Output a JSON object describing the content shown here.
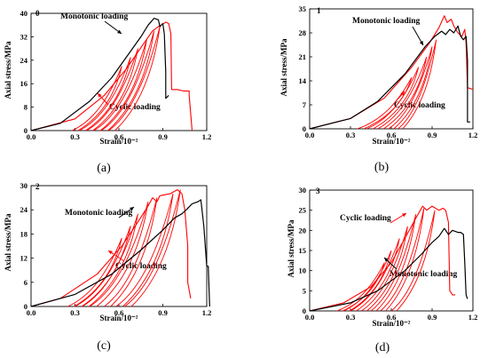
{
  "colors": {
    "monotonic": "#000000",
    "cyclic": "#ff0000",
    "axis": "#000000"
  },
  "chart_data": [
    {
      "type": "line",
      "panel_id": "0",
      "caption": "(a)",
      "xlabel": "Strain/10⁻²",
      "ylabel": "Axial stress/MPa",
      "xlim": [
        0.0,
        1.2
      ],
      "ylim": [
        0,
        40
      ],
      "xticks": [
        0.0,
        0.3,
        0.6,
        0.9,
        1.2
      ],
      "yticks": [
        0,
        8,
        16,
        24,
        32,
        40
      ],
      "xtick_labels": [
        "0.0",
        "0.3",
        "0.6",
        "0.9",
        "1.2"
      ],
      "ytick_labels": [
        "0",
        "8",
        "16",
        "24",
        "32",
        "40"
      ],
      "annotations": [
        {
          "text": "Monotonic loading",
          "series": "monotonic"
        },
        {
          "text": "Cyclic loading",
          "series": "cyclic"
        }
      ],
      "monotonic": [
        [
          0,
          0
        ],
        [
          0.2,
          2.5
        ],
        [
          0.4,
          10
        ],
        [
          0.55,
          18
        ],
        [
          0.65,
          25
        ],
        [
          0.75,
          32
        ],
        [
          0.8,
          36
        ],
        [
          0.84,
          38.3
        ],
        [
          0.87,
          37.8
        ],
        [
          0.88,
          35.5
        ],
        [
          0.9,
          36.5
        ],
        [
          0.91,
          33
        ],
        [
          0.92,
          20
        ],
        [
          0.92,
          11
        ],
        [
          0.93,
          11.5
        ],
        [
          0.94,
          12
        ]
      ],
      "cyclic_envelope": [
        [
          0,
          0
        ],
        [
          0.3,
          4
        ],
        [
          0.5,
          12
        ],
        [
          0.65,
          21
        ],
        [
          0.76,
          29
        ],
        [
          0.83,
          34
        ],
        [
          0.87,
          35.5
        ],
        [
          0.89,
          36
        ],
        [
          0.92,
          37
        ],
        [
          0.94,
          36.5
        ],
        [
          0.955,
          33
        ],
        [
          0.96,
          14
        ],
        [
          1.0,
          14
        ],
        [
          1.04,
          13.5
        ],
        [
          1.08,
          13.5
        ],
        [
          1.08,
          12
        ],
        [
          1.1,
          0
        ]
      ],
      "cyclic_loops": [
        {
          "start": 0.28,
          "peak": [
            0.62,
            22
          ]
        },
        {
          "start": 0.33,
          "peak": [
            0.68,
            25
          ]
        },
        {
          "start": 0.38,
          "peak": [
            0.73,
            28
          ]
        },
        {
          "start": 0.43,
          "peak": [
            0.79,
            31
          ]
        },
        {
          "start": 0.48,
          "peak": [
            0.84,
            34
          ]
        },
        {
          "start": 0.53,
          "peak": [
            0.88,
            35.5
          ]
        }
      ]
    },
    {
      "type": "line",
      "panel_id": "1",
      "caption": "(b)",
      "xlabel": "Strain/10⁻²",
      "ylabel": "Axial stress/MPa",
      "xlim": [
        0.0,
        1.2
      ],
      "ylim": [
        0,
        35
      ],
      "xticks": [
        0.0,
        0.3,
        0.6,
        0.9,
        1.2
      ],
      "yticks": [
        0,
        7,
        14,
        21,
        28,
        35
      ],
      "xtick_labels": [
        "0.0",
        "0.3",
        "0.6",
        "0.9",
        "1.2"
      ],
      "ytick_labels": [
        "0",
        "7",
        "14",
        "21",
        "28",
        "35"
      ],
      "annotations": [
        {
          "text": "Monotonic loading",
          "series": "monotonic"
        },
        {
          "text": "Cyclic loading",
          "series": "cyclic"
        }
      ],
      "monotonic": [
        [
          0,
          0
        ],
        [
          0.3,
          3
        ],
        [
          0.5,
          8
        ],
        [
          0.7,
          16
        ],
        [
          0.85,
          24
        ],
        [
          0.92,
          27
        ],
        [
          0.97,
          28.5
        ],
        [
          1.0,
          27.5
        ],
        [
          1.03,
          29
        ],
        [
          1.06,
          28
        ],
        [
          1.09,
          30
        ],
        [
          1.11,
          27
        ],
        [
          1.13,
          26
        ],
        [
          1.15,
          27
        ],
        [
          1.16,
          20
        ],
        [
          1.16,
          2
        ],
        [
          1.18,
          2
        ]
      ],
      "cyclic_envelope": [
        [
          0,
          0
        ],
        [
          0.3,
          3
        ],
        [
          0.55,
          9
        ],
        [
          0.75,
          18
        ],
        [
          0.88,
          25
        ],
        [
          0.95,
          29.5
        ],
        [
          0.99,
          33
        ],
        [
          1.01,
          31
        ],
        [
          1.04,
          32
        ],
        [
          1.06,
          30
        ],
        [
          1.09,
          28
        ],
        [
          1.12,
          27
        ],
        [
          1.14,
          29
        ],
        [
          1.15,
          25
        ],
        [
          1.16,
          12
        ],
        [
          1.2,
          11.5
        ]
      ],
      "cyclic_loops": [
        {
          "start": 0.35,
          "peak": [
            0.75,
            15
          ]
        },
        {
          "start": 0.42,
          "peak": [
            0.8,
            18
          ]
        },
        {
          "start": 0.5,
          "peak": [
            0.86,
            21
          ]
        },
        {
          "start": 0.58,
          "peak": [
            0.9,
            24
          ]
        },
        {
          "start": 0.65,
          "peak": [
            0.93,
            26
          ]
        }
      ]
    },
    {
      "type": "line",
      "panel_id": "2",
      "caption": "(c)",
      "xlabel": "Strain/10⁻²",
      "ylabel": "Axial stress/MPa",
      "xlim": [
        0.0,
        1.2
      ],
      "ylim": [
        0,
        30
      ],
      "xticks": [
        0.0,
        0.3,
        0.6,
        0.9,
        1.2
      ],
      "yticks": [
        0,
        6,
        12,
        18,
        24,
        30
      ],
      "xtick_labels": [
        "0.0",
        "0.3",
        "0.6",
        "0.9",
        "1.2"
      ],
      "ytick_labels": [
        "0",
        "6",
        "12",
        "18",
        "24",
        "30"
      ],
      "annotations": [
        {
          "text": "Monotonic loading",
          "series": "monotonic"
        },
        {
          "text": "Cyclic loading",
          "series": "cyclic"
        }
      ],
      "monotonic": [
        [
          0,
          0
        ],
        [
          0.3,
          3
        ],
        [
          0.55,
          8
        ],
        [
          0.75,
          14
        ],
        [
          0.9,
          19
        ],
        [
          0.98,
          22
        ],
        [
          1.03,
          23
        ],
        [
          1.06,
          24
        ],
        [
          1.1,
          25.5
        ],
        [
          1.14,
          26
        ],
        [
          1.16,
          26.5
        ],
        [
          1.18,
          20
        ],
        [
          1.2,
          10
        ],
        [
          1.21,
          10
        ],
        [
          1.22,
          0
        ]
      ],
      "cyclic_envelope": [
        [
          0,
          0
        ],
        [
          0.2,
          2
        ],
        [
          0.45,
          8
        ],
        [
          0.62,
          15
        ],
        [
          0.73,
          21
        ],
        [
          0.8,
          25
        ],
        [
          0.83,
          27
        ],
        [
          0.86,
          26
        ],
        [
          0.88,
          27.5
        ],
        [
          0.95,
          28
        ],
        [
          1.0,
          29
        ],
        [
          1.03,
          28
        ],
        [
          1.05,
          24
        ],
        [
          1.07,
          15
        ],
        [
          1.07,
          6
        ],
        [
          1.09,
          2
        ]
      ],
      "cyclic_loops": [
        {
          "start": 0.25,
          "peak": [
            0.62,
            17
          ]
        },
        {
          "start": 0.3,
          "peak": [
            0.68,
            20
          ]
        },
        {
          "start": 0.35,
          "peak": [
            0.73,
            23
          ]
        },
        {
          "start": 0.4,
          "peak": [
            0.8,
            26
          ]
        },
        {
          "start": 0.5,
          "peak": [
            0.86,
            27
          ]
        },
        {
          "start": 0.58,
          "peak": [
            0.97,
            28
          ]
        },
        {
          "start": 0.64,
          "peak": [
            1.02,
            29
          ]
        }
      ]
    },
    {
      "type": "line",
      "panel_id": "3",
      "caption": "(d)",
      "xlabel": "Strain/10⁻²",
      "ylabel": "Axial stress/MPa",
      "xlim": [
        0.0,
        1.2
      ],
      "ylim": [
        0,
        30
      ],
      "xticks": [
        0.0,
        0.3,
        0.6,
        0.9,
        1.2
      ],
      "yticks": [
        0,
        5,
        10,
        15,
        20,
        25,
        30
      ],
      "xtick_labels": [
        "0.0",
        "0.3",
        "0.6",
        "0.9",
        "1.2"
      ],
      "ytick_labels": [
        "0",
        "5",
        "10",
        "15",
        "20",
        "25",
        "30"
      ],
      "annotations": [
        {
          "text": "Cyclic loading",
          "series": "cyclic"
        },
        {
          "text": "Monotonic loading",
          "series": "monotonic"
        }
      ],
      "monotonic": [
        [
          0,
          0
        ],
        [
          0.3,
          2
        ],
        [
          0.5,
          5
        ],
        [
          0.7,
          10
        ],
        [
          0.82,
          14
        ],
        [
          0.9,
          17
        ],
        [
          0.95,
          18.5
        ],
        [
          0.99,
          20.5
        ],
        [
          1.02,
          19
        ],
        [
          1.05,
          20
        ],
        [
          1.09,
          19.5
        ],
        [
          1.11,
          19.5
        ],
        [
          1.13,
          19
        ],
        [
          1.14,
          12
        ],
        [
          1.15,
          4
        ],
        [
          1.16,
          3
        ]
      ],
      "cyclic_envelope": [
        [
          0,
          0
        ],
        [
          0.25,
          2
        ],
        [
          0.45,
          6
        ],
        [
          0.6,
          12
        ],
        [
          0.7,
          18
        ],
        [
          0.78,
          23
        ],
        [
          0.83,
          26
        ],
        [
          0.86,
          25
        ],
        [
          0.9,
          26
        ],
        [
          0.95,
          25
        ],
        [
          0.98,
          25.5
        ],
        [
          1.0,
          25
        ],
        [
          1.02,
          22
        ],
        [
          1.03,
          5
        ],
        [
          1.05,
          4
        ],
        [
          1.07,
          4
        ]
      ],
      "cyclic_loops": [
        {
          "start": 0.2,
          "peak": [
            0.55,
            12
          ]
        },
        {
          "start": 0.25,
          "peak": [
            0.6,
            15
          ]
        },
        {
          "start": 0.3,
          "peak": [
            0.66,
            18
          ]
        },
        {
          "start": 0.38,
          "peak": [
            0.72,
            21
          ]
        },
        {
          "start": 0.45,
          "peak": [
            0.78,
            24
          ]
        },
        {
          "start": 0.52,
          "peak": [
            0.84,
            25.5
          ]
        },
        {
          "start": 0.6,
          "peak": [
            0.92,
            25
          ]
        }
      ]
    }
  ]
}
